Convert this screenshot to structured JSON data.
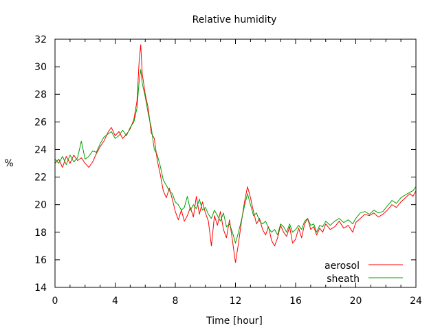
{
  "chart_data": {
    "type": "line",
    "title": "Relative humidity",
    "xlabel": "Time [hour]",
    "ylabel": "%",
    "xlim": [
      0,
      24
    ],
    "ylim": [
      14,
      32
    ],
    "x_ticks": [
      0,
      4,
      8,
      12,
      16,
      20,
      24
    ],
    "y_ticks": [
      14,
      16,
      18,
      20,
      22,
      24,
      26,
      28,
      30,
      32
    ],
    "grid": false,
    "legend_position": "bottom-right",
    "series": [
      {
        "name": "aerosol",
        "color": "#ff0000",
        "points": [
          [
            0.0,
            23.0
          ],
          [
            0.25,
            23.3
          ],
          [
            0.5,
            22.7
          ],
          [
            0.75,
            23.5
          ],
          [
            1.0,
            23.0
          ],
          [
            1.25,
            23.6
          ],
          [
            1.5,
            23.2
          ],
          [
            1.75,
            23.4
          ],
          [
            2.0,
            23.0
          ],
          [
            2.25,
            22.7
          ],
          [
            2.5,
            23.1
          ],
          [
            2.75,
            23.7
          ],
          [
            3.0,
            24.2
          ],
          [
            3.25,
            24.6
          ],
          [
            3.5,
            25.2
          ],
          [
            3.75,
            25.6
          ],
          [
            4.0,
            25.0
          ],
          [
            4.25,
            25.3
          ],
          [
            4.5,
            24.8
          ],
          [
            4.75,
            25.1
          ],
          [
            5.0,
            25.5
          ],
          [
            5.25,
            26.2
          ],
          [
            5.45,
            27.5
          ],
          [
            5.6,
            30.5
          ],
          [
            5.7,
            31.6
          ],
          [
            5.8,
            29.5
          ],
          [
            6.0,
            28.0
          ],
          [
            6.2,
            27.0
          ],
          [
            6.4,
            25.2
          ],
          [
            6.6,
            24.8
          ],
          [
            6.8,
            23.2
          ],
          [
            7.0,
            22.2
          ],
          [
            7.2,
            21.0
          ],
          [
            7.4,
            20.5
          ],
          [
            7.6,
            21.2
          ],
          [
            7.8,
            20.4
          ],
          [
            8.0,
            19.5
          ],
          [
            8.2,
            18.9
          ],
          [
            8.4,
            19.6
          ],
          [
            8.6,
            18.8
          ],
          [
            8.8,
            19.2
          ],
          [
            9.0,
            19.8
          ],
          [
            9.2,
            19.1
          ],
          [
            9.4,
            20.6
          ],
          [
            9.6,
            19.3
          ],
          [
            9.8,
            20.2
          ],
          [
            10.0,
            19.4
          ],
          [
            10.2,
            18.8
          ],
          [
            10.4,
            17.0
          ],
          [
            10.6,
            19.2
          ],
          [
            10.8,
            18.5
          ],
          [
            11.0,
            19.5
          ],
          [
            11.2,
            18.2
          ],
          [
            11.4,
            17.6
          ],
          [
            11.6,
            18.9
          ],
          [
            11.8,
            17.4
          ],
          [
            12.0,
            15.8
          ],
          [
            12.2,
            17.2
          ],
          [
            12.4,
            18.8
          ],
          [
            12.6,
            20.2
          ],
          [
            12.8,
            21.3
          ],
          [
            13.0,
            20.5
          ],
          [
            13.2,
            19.5
          ],
          [
            13.4,
            18.6
          ],
          [
            13.6,
            19.0
          ],
          [
            13.8,
            18.2
          ],
          [
            14.0,
            17.8
          ],
          [
            14.2,
            18.4
          ],
          [
            14.4,
            17.4
          ],
          [
            14.6,
            17.0
          ],
          [
            14.8,
            17.6
          ],
          [
            15.0,
            18.5
          ],
          [
            15.2,
            18.0
          ],
          [
            15.4,
            17.7
          ],
          [
            15.6,
            18.4
          ],
          [
            15.8,
            17.2
          ],
          [
            16.0,
            17.5
          ],
          [
            16.2,
            18.3
          ],
          [
            16.4,
            17.6
          ],
          [
            16.6,
            18.6
          ],
          [
            16.8,
            19.0
          ],
          [
            17.0,
            18.2
          ],
          [
            17.2,
            18.4
          ],
          [
            17.4,
            17.8
          ],
          [
            17.6,
            18.3
          ],
          [
            17.8,
            18.0
          ],
          [
            18.0,
            18.6
          ],
          [
            18.3,
            18.2
          ],
          [
            18.6,
            18.4
          ],
          [
            18.9,
            18.8
          ],
          [
            19.2,
            18.3
          ],
          [
            19.5,
            18.5
          ],
          [
            19.8,
            18.0
          ],
          [
            20.0,
            18.7
          ],
          [
            20.3,
            19.0
          ],
          [
            20.6,
            19.3
          ],
          [
            20.9,
            19.2
          ],
          [
            21.2,
            19.4
          ],
          [
            21.5,
            19.1
          ],
          [
            21.8,
            19.3
          ],
          [
            22.1,
            19.6
          ],
          [
            22.4,
            20.0
          ],
          [
            22.7,
            19.8
          ],
          [
            23.0,
            20.2
          ],
          [
            23.3,
            20.5
          ],
          [
            23.6,
            20.8
          ],
          [
            23.8,
            20.6
          ],
          [
            24.0,
            21.0
          ]
        ]
      },
      {
        "name": "sheath",
        "color": "#00a000",
        "points": [
          [
            0.0,
            23.3
          ],
          [
            0.25,
            23.0
          ],
          [
            0.5,
            23.5
          ],
          [
            0.75,
            22.9
          ],
          [
            1.0,
            23.6
          ],
          [
            1.25,
            23.1
          ],
          [
            1.5,
            23.4
          ],
          [
            1.75,
            24.6
          ],
          [
            2.0,
            23.3
          ],
          [
            2.25,
            23.5
          ],
          [
            2.5,
            23.9
          ],
          [
            2.75,
            23.8
          ],
          [
            3.0,
            24.4
          ],
          [
            3.25,
            24.9
          ],
          [
            3.5,
            25.1
          ],
          [
            3.75,
            25.3
          ],
          [
            4.0,
            24.8
          ],
          [
            4.25,
            25.0
          ],
          [
            4.5,
            25.4
          ],
          [
            4.75,
            25.0
          ],
          [
            5.0,
            25.6
          ],
          [
            5.25,
            26.0
          ],
          [
            5.45,
            27.0
          ],
          [
            5.6,
            29.0
          ],
          [
            5.7,
            29.8
          ],
          [
            5.8,
            28.8
          ],
          [
            6.0,
            27.8
          ],
          [
            6.2,
            26.6
          ],
          [
            6.4,
            25.6
          ],
          [
            6.6,
            24.0
          ],
          [
            6.8,
            23.6
          ],
          [
            7.0,
            22.8
          ],
          [
            7.2,
            21.8
          ],
          [
            7.4,
            21.4
          ],
          [
            7.6,
            21.0
          ],
          [
            7.8,
            20.8
          ],
          [
            8.0,
            20.2
          ],
          [
            8.2,
            20.0
          ],
          [
            8.4,
            19.6
          ],
          [
            8.6,
            19.8
          ],
          [
            8.8,
            20.6
          ],
          [
            9.0,
            19.6
          ],
          [
            9.2,
            20.0
          ],
          [
            9.4,
            19.7
          ],
          [
            9.6,
            20.4
          ],
          [
            9.8,
            19.6
          ],
          [
            10.0,
            19.8
          ],
          [
            10.2,
            19.3
          ],
          [
            10.4,
            19.0
          ],
          [
            10.6,
            19.6
          ],
          [
            10.8,
            19.2
          ],
          [
            11.0,
            18.8
          ],
          [
            11.2,
            19.4
          ],
          [
            11.4,
            18.4
          ],
          [
            11.6,
            18.6
          ],
          [
            11.8,
            18.0
          ],
          [
            12.0,
            17.2
          ],
          [
            12.2,
            18.0
          ],
          [
            12.4,
            18.9
          ],
          [
            12.6,
            19.9
          ],
          [
            12.8,
            20.8
          ],
          [
            13.0,
            20.0
          ],
          [
            13.2,
            19.2
          ],
          [
            13.4,
            19.4
          ],
          [
            13.6,
            18.8
          ],
          [
            13.8,
            18.6
          ],
          [
            14.0,
            18.8
          ],
          [
            14.2,
            18.3
          ],
          [
            14.4,
            18.0
          ],
          [
            14.6,
            18.2
          ],
          [
            14.8,
            17.8
          ],
          [
            15.0,
            18.6
          ],
          [
            15.2,
            18.4
          ],
          [
            15.4,
            18.0
          ],
          [
            15.6,
            18.6
          ],
          [
            15.8,
            18.0
          ],
          [
            16.0,
            18.2
          ],
          [
            16.2,
            18.5
          ],
          [
            16.4,
            18.2
          ],
          [
            16.6,
            18.8
          ],
          [
            16.8,
            19.0
          ],
          [
            17.0,
            18.5
          ],
          [
            17.2,
            18.6
          ],
          [
            17.4,
            18.0
          ],
          [
            17.6,
            18.5
          ],
          [
            17.8,
            18.4
          ],
          [
            18.0,
            18.8
          ],
          [
            18.3,
            18.5
          ],
          [
            18.6,
            18.8
          ],
          [
            18.9,
            19.0
          ],
          [
            19.2,
            18.7
          ],
          [
            19.5,
            18.9
          ],
          [
            19.8,
            18.6
          ],
          [
            20.0,
            19.0
          ],
          [
            20.3,
            19.4
          ],
          [
            20.6,
            19.5
          ],
          [
            20.9,
            19.3
          ],
          [
            21.2,
            19.6
          ],
          [
            21.5,
            19.4
          ],
          [
            21.8,
            19.5
          ],
          [
            22.1,
            19.9
          ],
          [
            22.4,
            20.3
          ],
          [
            22.7,
            20.1
          ],
          [
            23.0,
            20.5
          ],
          [
            23.3,
            20.7
          ],
          [
            23.6,
            20.9
          ],
          [
            23.8,
            21.0
          ],
          [
            24.0,
            21.3
          ]
        ]
      }
    ]
  }
}
